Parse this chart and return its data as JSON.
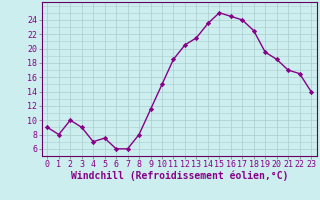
{
  "x": [
    0,
    1,
    2,
    3,
    4,
    5,
    6,
    7,
    8,
    9,
    10,
    11,
    12,
    13,
    14,
    15,
    16,
    17,
    18,
    19,
    20,
    21,
    22,
    23
  ],
  "y": [
    9.0,
    8.0,
    10.0,
    9.0,
    7.0,
    7.5,
    6.0,
    6.0,
    8.0,
    11.5,
    15.0,
    18.5,
    20.5,
    21.5,
    23.5,
    25.0,
    24.5,
    24.0,
    22.5,
    19.5,
    18.5,
    17.0,
    16.5,
    14.0
  ],
  "line_color": "#880088",
  "marker": "D",
  "marker_size": 2.2,
  "line_width": 1.0,
  "bg_color": "#cceeee",
  "grid_color": "#aacccc",
  "xlabel": "Windchill (Refroidissement éolien,°C)",
  "xlabel_color": "#880088",
  "xlabel_fontsize": 7,
  "ytick_labels": [
    "6",
    "8",
    "10",
    "12",
    "14",
    "16",
    "18",
    "20",
    "22",
    "24"
  ],
  "ytick_values": [
    6,
    8,
    10,
    12,
    14,
    16,
    18,
    20,
    22,
    24
  ],
  "ylim": [
    5.0,
    26.5
  ],
  "xlim": [
    -0.5,
    23.5
  ],
  "tick_fontsize": 6,
  "tick_color": "#880088",
  "axis_color": "#888888",
  "spine_color": "#660066"
}
